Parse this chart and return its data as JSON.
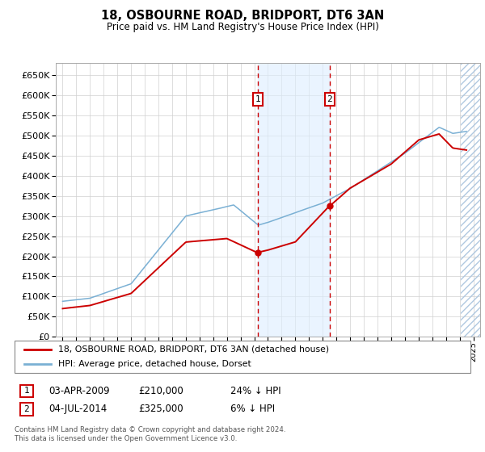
{
  "title": "18, OSBOURNE ROAD, BRIDPORT, DT6 3AN",
  "subtitle": "Price paid vs. HM Land Registry's House Price Index (HPI)",
  "legend_line1": "18, OSBOURNE ROAD, BRIDPORT, DT6 3AN (detached house)",
  "legend_line2": "HPI: Average price, detached house, Dorset",
  "annotation1_label": "1",
  "annotation1_date": "03-APR-2009",
  "annotation1_price": "£210,000",
  "annotation1_hpi": "24% ↓ HPI",
  "annotation2_label": "2",
  "annotation2_date": "04-JUL-2014",
  "annotation2_price": "£325,000",
  "annotation2_hpi": "6% ↓ HPI",
  "footer": "Contains HM Land Registry data © Crown copyright and database right 2024.\nThis data is licensed under the Open Government Licence v3.0.",
  "price_color": "#cc0000",
  "hpi_color": "#7ab0d4",
  "vline_color": "#cc0000",
  "vline1_year": 2009.25,
  "vline2_year": 2014.5,
  "shade_color": "#ddeeff",
  "ylim": [
    0,
    680000
  ],
  "yticks": [
    0,
    50000,
    100000,
    150000,
    200000,
    250000,
    300000,
    350000,
    400000,
    450000,
    500000,
    550000,
    600000,
    650000
  ],
  "xlim_start": 1994.5,
  "xlim_end": 2025.5,
  "hatch_start": 2024.08
}
